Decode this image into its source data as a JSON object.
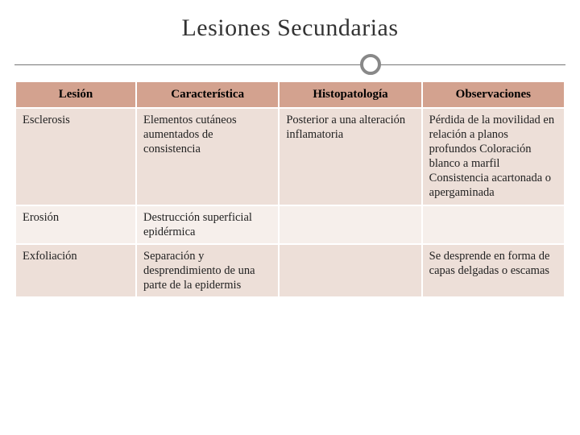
{
  "slide": {
    "title": "Lesiones Secundarias",
    "background_color": "#ffffff",
    "title_color": "#333333",
    "title_fontsize": 30,
    "rule_color": "#777777",
    "circle_border_color": "#888888"
  },
  "table": {
    "header_bg": "#d3a28f",
    "band_a_bg": "#eddfd8",
    "band_b_bg": "#f6efeb",
    "border_color": "#ffffff",
    "font_size": 14.5,
    "columns": [
      {
        "label": "Lesión",
        "width_pct": 22
      },
      {
        "label": "Característica",
        "width_pct": 26
      },
      {
        "label": "Histopatología",
        "width_pct": 26
      },
      {
        "label": "Observaciones",
        "width_pct": 26
      }
    ],
    "rows": [
      {
        "band": "a",
        "lesion": "Esclerosis",
        "caracteristica": "Elementos cutáneos aumentados de consistencia",
        "histopatologia": "Posterior a una alteración inflamatoria",
        "observaciones": "Pérdida de la movilidad en relación a planos profundos Coloración blanco a marfil Consistencia acartonada o apergaminada"
      },
      {
        "band": "b",
        "lesion": "Erosión",
        "caracteristica": "Destrucción superficial epidérmica",
        "histopatologia": "",
        "observaciones": ""
      },
      {
        "band": "a",
        "lesion": "Exfoliación",
        "caracteristica": "Separación y desprendimiento de una parte de la epidermis",
        "histopatologia": "",
        "observaciones": "Se desprende en forma de capas delgadas o escamas"
      }
    ]
  }
}
